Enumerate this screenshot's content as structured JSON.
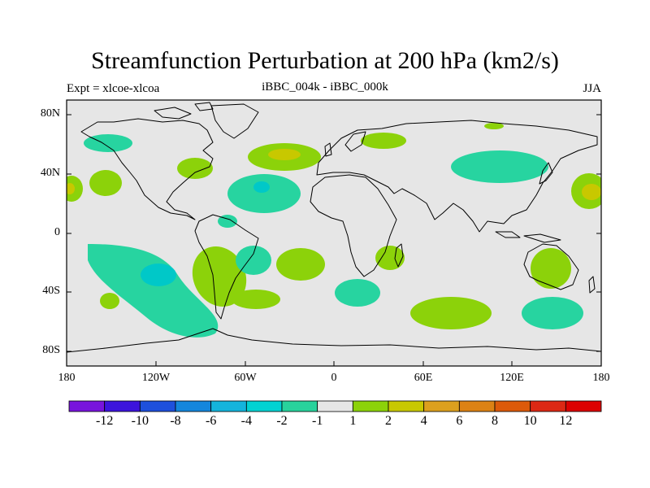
{
  "title": "Streamfunction Perturbation at 200 hPa (km2/s)",
  "subtitle_left": "Expt = xlcoe-xlcoa",
  "subtitle_center": "iBBC_004k - iBBC_000k",
  "subtitle_right": "JJA",
  "colors": {
    "background_fill": "#e6e6e6",
    "neg_1_2": "#27d4a0",
    "neg_2_4": "#00c8c8",
    "neg_4_6": "#14a0dc",
    "pos_1_2": "#8cd20a",
    "pos_2_4": "#c8c800",
    "pos_4_6": "#dca01e"
  },
  "lat_labels": [
    "80N",
    "40N",
    "0",
    "40S",
    "80S"
  ],
  "lon_labels": [
    "180",
    "120W",
    "60W",
    "0",
    "60E",
    "120E",
    "180"
  ],
  "colorbar": {
    "colors": [
      "#7814dc",
      "#3c14dc",
      "#1e50dc",
      "#1486dc",
      "#14b4dc",
      "#00d2d2",
      "#28d29c",
      "#e6e6e6",
      "#8cd20a",
      "#c8c800",
      "#dca01e",
      "#dc8214",
      "#dc5a0a",
      "#dc2814",
      "#dc0000"
    ],
    "labels": [
      "-12",
      "-10",
      "-8",
      "-6",
      "-4",
      "-2",
      "-1",
      "1",
      "2",
      "4",
      "6",
      "8",
      "10",
      "12"
    ]
  }
}
